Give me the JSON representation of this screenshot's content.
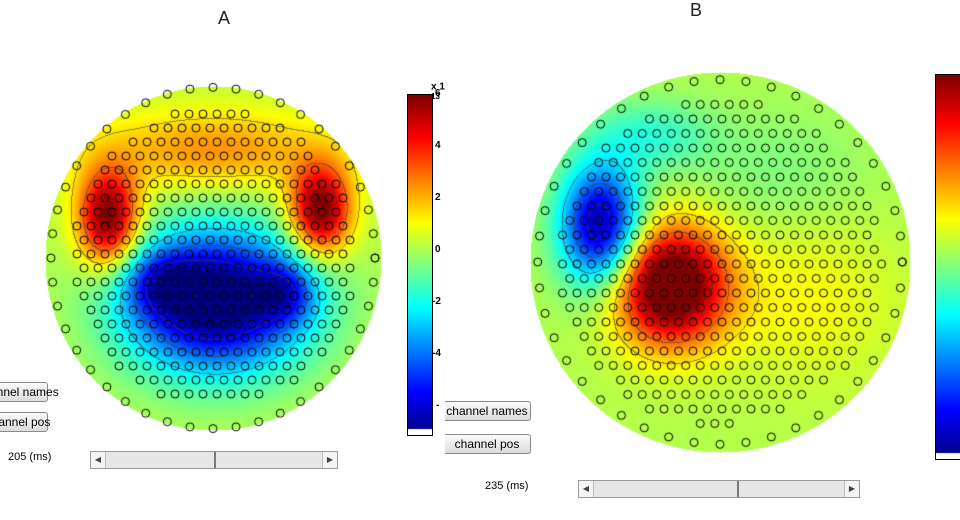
{
  "panels": [
    {
      "title": "A",
      "buttons": {
        "channel_names": "channel names",
        "channel_pos": "channel pos"
      },
      "time_label": "205 (ms)",
      "colorbar": {
        "exponent_label": "x 10",
        "exponent_power": "-13",
        "ticks": [
          "6",
          "4",
          "2",
          "0",
          "-2",
          "-4",
          "-"
        ]
      },
      "slider_position": 0.5
    },
    {
      "title": "B",
      "buttons": {
        "channel_names": "channel names",
        "channel_pos": "channel pos"
      },
      "time_label": "235 (ms)",
      "slider_position": 0.57
    }
  ],
  "colors": {
    "background": "#ffffff",
    "colormap": [
      "#00008f",
      "#0000ff",
      "#00ffff",
      "#ffff00",
      "#ff0000",
      "#800000"
    ]
  },
  "icons": {
    "slider_left": "arrow-left-icon",
    "slider_right": "arrow-right-icon"
  }
}
